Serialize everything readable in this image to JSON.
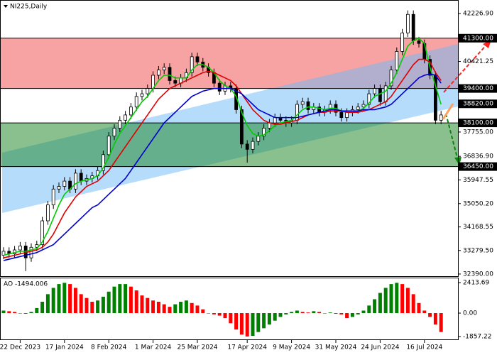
{
  "chart_data": {
    "type": "candlestick",
    "title": "NI225,Daily",
    "categories": [
      null,
      null,
      null,
      "22 Dec 2023",
      null,
      null,
      null,
      null,
      null,
      null,
      null,
      "17 Jan 2024",
      null,
      null,
      null,
      null,
      null,
      null,
      null,
      "8 Feb 2024",
      null,
      null,
      null,
      null,
      null,
      null,
      null,
      "1 Mar 2024",
      null,
      null,
      null,
      null,
      null,
      null,
      null,
      "25 Mar 2024",
      null,
      null,
      null,
      null,
      null,
      null,
      null,
      null,
      "17 Apr 2024",
      null,
      null,
      null,
      null,
      null,
      null,
      null,
      "9 May 2024",
      null,
      null,
      null,
      null,
      null,
      null,
      null,
      "31 May 2024",
      null,
      null,
      null,
      null,
      null,
      null,
      null,
      "24 Jun 2024",
      null,
      null,
      null,
      null,
      null,
      null,
      null,
      "16 Jul 2024",
      null,
      null,
      null
    ],
    "open": [
      33100,
      33250,
      33150,
      33300,
      33450,
      33000,
      33400,
      33500,
      34400,
      35000,
      35600,
      35700,
      35900,
      35600,
      36200,
      35900,
      36000,
      36100,
      36300,
      36900,
      37600,
      37900,
      38200,
      38400,
      38700,
      39100,
      39200,
      39400,
      39900,
      40100,
      40200,
      39700,
      39600,
      39800,
      40000,
      40600,
      40400,
      40200,
      40000,
      39600,
      39300,
      39500,
      39400,
      38600,
      37300,
      37100,
      37400,
      37600,
      37900,
      38100,
      38300,
      38200,
      38100,
      38200,
      38800,
      38900,
      38600,
      38700,
      38500,
      38600,
      38800,
      38500,
      38300,
      38500,
      38600,
      38700,
      38800,
      39200,
      39400,
      38900,
      39500,
      40100,
      40800,
      41500,
      42200,
      41200,
      41100,
      40500,
      39900,
      38200
    ],
    "high": [
      33400,
      33400,
      33450,
      33600,
      33600,
      33550,
      33650,
      34550,
      35150,
      35750,
      35850,
      36050,
      36050,
      36350,
      36350,
      36150,
      36250,
      36450,
      37050,
      37750,
      38050,
      38350,
      38550,
      38850,
      39250,
      39350,
      39550,
      40050,
      40250,
      40350,
      40350,
      39850,
      39950,
      40150,
      40750,
      40750,
      40550,
      40350,
      40150,
      39750,
      39650,
      39650,
      39550,
      38750,
      37450,
      37550,
      37750,
      38050,
      38250,
      38450,
      38450,
      38350,
      38350,
      38950,
      39050,
      39050,
      38850,
      38850,
      38750,
      38950,
      38950,
      38650,
      38650,
      38750,
      38850,
      38950,
      39350,
      39550,
      39550,
      39650,
      40250,
      40950,
      41650,
      42350,
      42350,
      41350,
      41250,
      40650,
      40050,
      38550
    ],
    "low": [
      32950,
      33000,
      33000,
      33150,
      32500,
      32850,
      33250,
      33350,
      34250,
      34850,
      35450,
      35550,
      35450,
      35450,
      35750,
      35750,
      35850,
      35950,
      36150,
      36750,
      37450,
      37750,
      38050,
      38250,
      38550,
      38950,
      39050,
      39250,
      39750,
      39950,
      39550,
      39450,
      39450,
      39650,
      39850,
      40250,
      40050,
      39850,
      39450,
      39150,
      39150,
      39250,
      38450,
      37150,
      36600,
      36950,
      37250,
      37450,
      37750,
      37950,
      38050,
      37950,
      37950,
      38050,
      38650,
      38450,
      38450,
      38350,
      38350,
      38450,
      38350,
      38150,
      38150,
      38350,
      38450,
      38550,
      38650,
      39050,
      38750,
      38750,
      39350,
      39950,
      40650,
      41350,
      41050,
      40950,
      40350,
      39750,
      38050,
      38050
    ],
    "close": [
      33250,
      33150,
      33300,
      33450,
      33000,
      33400,
      33500,
      34400,
      35000,
      35600,
      35700,
      35900,
      35600,
      36200,
      35900,
      36000,
      36100,
      36300,
      36900,
      37600,
      37900,
      38200,
      38400,
      38700,
      39100,
      39200,
      39400,
      39900,
      40100,
      40200,
      39700,
      39600,
      39800,
      40000,
      40600,
      40400,
      40200,
      40000,
      39600,
      39300,
      39500,
      39400,
      38600,
      37300,
      37100,
      37400,
      37600,
      37900,
      38100,
      38300,
      38200,
      38100,
      38200,
      38800,
      38900,
      38600,
      38700,
      38500,
      38600,
      38800,
      38500,
      38300,
      38500,
      38600,
      38700,
      38800,
      39200,
      39400,
      38900,
      39500,
      40100,
      40800,
      41500,
      42200,
      41200,
      41100,
      40500,
      39900,
      38200,
      38400
    ],
    "up_color": "#ffffff",
    "down_color": "#000000",
    "series": [
      {
        "color": "#00cc00",
        "values": [
          33100,
          33150,
          33200,
          33250,
          33250,
          33300,
          33350,
          33600,
          34000,
          34500,
          35000,
          35400,
          35600,
          35800,
          35900,
          35950,
          36000,
          36100,
          36400,
          36800,
          37300,
          37700,
          38000,
          38300,
          38600,
          38900,
          39100,
          39400,
          39700,
          39900,
          39900,
          39800,
          39800,
          39800,
          40100,
          40300,
          40300,
          40200,
          40000,
          39700,
          39500,
          39400,
          39100,
          38500,
          38000,
          37700,
          37600,
          37650,
          37800,
          38000,
          38100,
          38150,
          38200,
          38400,
          38600,
          38700,
          38700,
          38650,
          38600,
          38650,
          38650,
          38550,
          38500,
          38500,
          38550,
          38650,
          38850,
          39100,
          39200,
          39300,
          39600,
          40000,
          40500,
          41000,
          41200,
          41300,
          41100,
          40200,
          39500,
          38800
        ]
      },
      {
        "color": "#e00000",
        "values": [
          33000,
          33050,
          33100,
          33150,
          33200,
          33250,
          33300,
          33400,
          33600,
          33900,
          34300,
          34700,
          35000,
          35300,
          35500,
          35700,
          35800,
          35900,
          36100,
          36300,
          36600,
          36900,
          37200,
          37500,
          37800,
          38100,
          38400,
          38700,
          39000,
          39200,
          39400,
          39500,
          39600,
          39700,
          39800,
          39900,
          40000,
          40050,
          40000,
          39900,
          39800,
          39700,
          39500,
          39200,
          38900,
          38600,
          38400,
          38200,
          38100,
          38050,
          38050,
          38100,
          38150,
          38200,
          38300,
          38400,
          38450,
          38500,
          38500,
          38550,
          38550,
          38550,
          38500,
          38500,
          38500,
          38550,
          38600,
          38700,
          38800,
          38900,
          39100,
          39400,
          39700,
          40000,
          40300,
          40500,
          40500,
          40400,
          40000,
          39700
        ]
      },
      {
        "color": "#0000cc",
        "values": [
          32900,
          32950,
          33000,
          33050,
          33100,
          33150,
          33200,
          33300,
          33400,
          33500,
          33700,
          33900,
          34100,
          34300,
          34500,
          34700,
          34900,
          35000,
          35200,
          35400,
          35600,
          35800,
          36000,
          36300,
          36600,
          36900,
          37200,
          37500,
          37800,
          38100,
          38300,
          38500,
          38700,
          38900,
          39100,
          39200,
          39300,
          39350,
          39400,
          39400,
          39400,
          39400,
          39300,
          39200,
          39000,
          38800,
          38600,
          38500,
          38400,
          38300,
          38300,
          38300,
          38300,
          38300,
          38350,
          38400,
          38450,
          38500,
          38550,
          38600,
          38600,
          38550,
          38550,
          38550,
          38550,
          38600,
          38600,
          38600,
          38650,
          38700,
          38800,
          39000,
          39200,
          39400,
          39600,
          39800,
          39900,
          39950,
          39900,
          39600
        ]
      }
    ],
    "ylim": [
      32308,
      42716
    ],
    "yticks": [
      {
        "value": 42226.9,
        "label": "42226.90"
      },
      {
        "value": 40421.25,
        "label": "40421.25"
      },
      {
        "value": 37755,
        "label": "37755.00"
      },
      {
        "value": 36836.9,
        "label": "36836.90"
      },
      {
        "value": 35947.55,
        "label": "35947.55"
      },
      {
        "value": 35050.2,
        "label": "35050.20"
      },
      {
        "value": 34168.55,
        "label": "34168.55"
      },
      {
        "value": 33279.5,
        "label": "33279.50"
      },
      {
        "value": 32390,
        "label": "32390.00"
      }
    ],
    "levels": [
      {
        "value": 41300,
        "label": "41300.00",
        "line": true
      },
      {
        "value": 39400,
        "label": "39400.00",
        "line": true
      },
      {
        "value": 38820,
        "label": "38820.00",
        "line": false
      },
      {
        "value": 38100,
        "label": "38100.00",
        "line": true
      },
      {
        "value": 36450,
        "label": "36450.00",
        "line": true
      }
    ],
    "zones": [
      {
        "from": 39400,
        "to": 41300,
        "color": "#f7a3a3"
      },
      {
        "from": 36450,
        "to": 38100,
        "color": "rgba(20,130,30,0.5)"
      }
    ],
    "indicator": {
      "label": "AO -1494.006",
      "values": [
        200,
        150,
        100,
        0,
        -50,
        100,
        400,
        900,
        1500,
        2000,
        2300,
        2400,
        2300,
        2000,
        1500,
        1200,
        900,
        1000,
        1300,
        1700,
        2100,
        2300,
        2300,
        2100,
        1800,
        1400,
        1200,
        1000,
        900,
        700,
        500,
        700,
        900,
        1000,
        800,
        600,
        300,
        0,
        -100,
        -200,
        -400,
        -800,
        -1300,
        -1700,
        -1850,
        -1800,
        -1500,
        -1200,
        -900,
        -600,
        -300,
        -100,
        100,
        200,
        100,
        50,
        150,
        100,
        0,
        50,
        -50,
        -100,
        -400,
        -300,
        -100,
        200,
        600,
        1100,
        1600,
        2000,
        2300,
        2400,
        2300,
        2000,
        1500,
        800,
        200,
        -300,
        -900,
        -1494.006
      ],
      "up_color": "#008000",
      "down_color": "#ff0000",
      "ylim": [
        -2080,
        2700
      ],
      "yticks": [
        2413.69,
        {
          "value": 0,
          "label": "0.00"
        },
        -1857.22
      ]
    }
  }
}
